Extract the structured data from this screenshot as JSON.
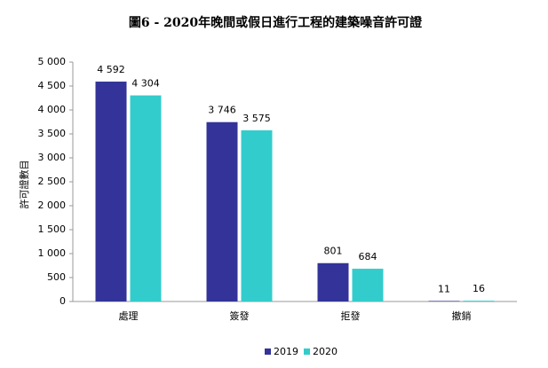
{
  "chart_data": {
    "type": "bar",
    "title": "圖6 - 2020年晚間或假日進行工程的建築噪音許可證",
    "y_label": "許可證數目",
    "categories": [
      "處理",
      "簽發",
      "拒發",
      "撤銷"
    ],
    "series": [
      {
        "name": "2019",
        "color": "#333399",
        "values": [
          4592,
          3746,
          801,
          11
        ],
        "value_labels": [
          "4 592",
          "3 746",
          "801",
          "11"
        ]
      },
      {
        "name": "2020",
        "color": "#33cccc",
        "values": [
          4304,
          3575,
          684,
          16
        ],
        "value_labels": [
          "4 304",
          "3 575",
          "684",
          "16"
        ]
      }
    ],
    "ylim": [
      0,
      5000
    ],
    "yticks": [
      0,
      {
        "value": 500,
        "label": "500"
      },
      {
        "value": 1000,
        "label": "1 000"
      },
      {
        "value": 1500,
        "label": "1 500"
      },
      {
        "value": 2000,
        "label": "2 000"
      },
      {
        "value": 2500,
        "label": "2 500"
      },
      {
        "value": 3000,
        "label": "3 000"
      },
      {
        "value": 3500,
        "label": "3 500"
      },
      {
        "value": 4000,
        "label": "4 000"
      },
      {
        "value": 4500,
        "label": "4 500"
      },
      {
        "value": 5000,
        "label": "5 000"
      }
    ],
    "grid": false,
    "legend": "bottom"
  }
}
